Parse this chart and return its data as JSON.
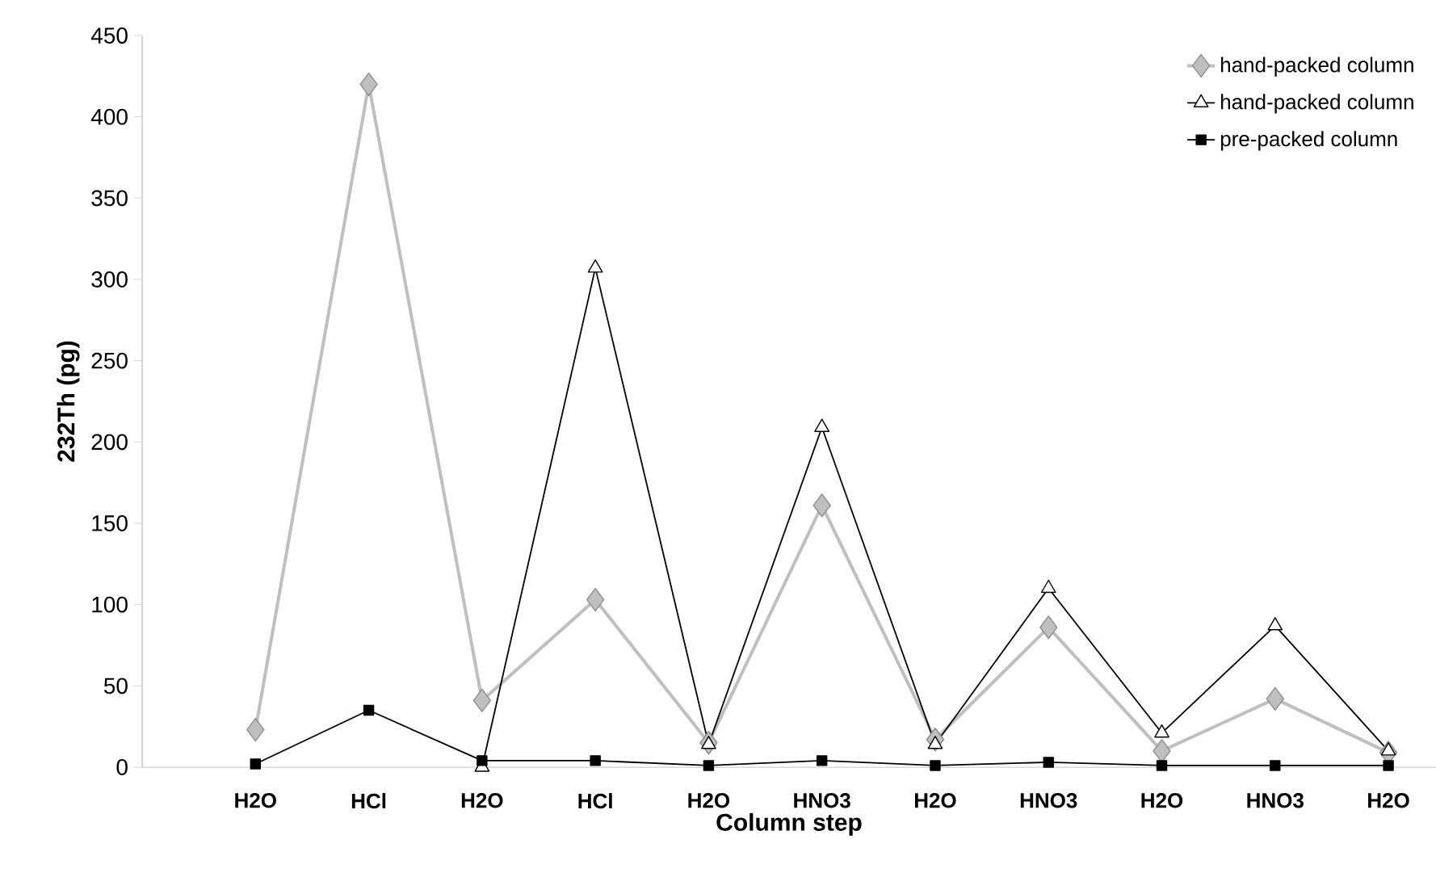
{
  "chart_data": {
    "type": "line",
    "xlabel": "Column step",
    "ylabel": "232Th (pg)",
    "categories": [
      "H2O",
      "HCl",
      "H2O",
      "HCl",
      "H2O",
      "HNO3",
      "H2O",
      "HNO3",
      "H2O",
      "HNO3",
      "H2O"
    ],
    "ylim": [
      0,
      450
    ],
    "yticks": [
      0,
      50,
      100,
      150,
      200,
      250,
      300,
      350,
      400,
      450
    ],
    "grid": false,
    "legend": "top right",
    "series": [
      {
        "name": "hand-packed column",
        "color": "#bfbfbf",
        "marker": "diamond",
        "values": [
          23,
          420,
          41,
          103,
          15,
          161,
          17,
          86,
          10,
          42,
          9
        ]
      },
      {
        "name": "hand-packed column",
        "color": "#000000",
        "marker": "triangle",
        "values": [
          null,
          null,
          0,
          307,
          14,
          209,
          14,
          110,
          21,
          87,
          10
        ]
      },
      {
        "name": "pre-packed column",
        "color": "#000000",
        "marker": "square",
        "values": [
          2,
          35,
          4,
          4,
          1,
          4,
          1,
          3,
          1,
          1,
          1
        ]
      }
    ]
  }
}
